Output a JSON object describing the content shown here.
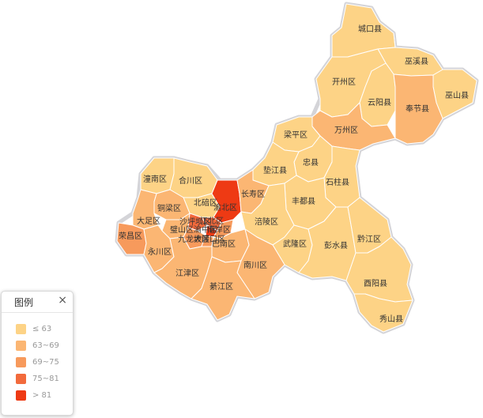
{
  "legend": {
    "title": "图例",
    "close": "×",
    "items": [
      {
        "label": "≤ 63",
        "color": "#fdd386"
      },
      {
        "label": "63~69",
        "color": "#fbb673"
      },
      {
        "label": "69~75",
        "color": "#f79a5c"
      },
      {
        "label": "75~81",
        "color": "#f26a3c"
      },
      {
        "label": "> 81",
        "color": "#ee3a14"
      }
    ]
  },
  "regions": [
    {
      "name": "城口县",
      "class": 0
    },
    {
      "name": "巫溪县",
      "class": 0
    },
    {
      "name": "开州区",
      "class": 0
    },
    {
      "name": "巫山县",
      "class": 0
    },
    {
      "name": "云阳县",
      "class": 0
    },
    {
      "name": "奉节县",
      "class": 1
    },
    {
      "name": "万州区",
      "class": 1
    },
    {
      "name": "梁平区",
      "class": 0
    },
    {
      "name": "忠县",
      "class": 0
    },
    {
      "name": "垫江县",
      "class": 0
    },
    {
      "name": "石柱县",
      "class": 0
    },
    {
      "name": "潼南区",
      "class": 0
    },
    {
      "name": "合川区",
      "class": 0
    },
    {
      "name": "北碚区",
      "class": 0
    },
    {
      "name": "渝北区",
      "class": 4
    },
    {
      "name": "长寿区",
      "class": 1
    },
    {
      "name": "丰都县",
      "class": 0
    },
    {
      "name": "铜梁区",
      "class": 1
    },
    {
      "name": "大足区",
      "class": 1
    },
    {
      "name": "沙坪坝区",
      "class": 3
    },
    {
      "name": "江北区",
      "class": 3
    },
    {
      "name": "荣昌区",
      "class": 2
    },
    {
      "name": "璧山区",
      "class": 1
    },
    {
      "name": "渝中区",
      "class": 4
    },
    {
      "name": "南岸区",
      "class": 2
    },
    {
      "name": "涪陵区",
      "class": 0
    },
    {
      "name": "九龙坡区",
      "class": 2
    },
    {
      "name": "大渡口区",
      "class": 2
    },
    {
      "name": "巴南区",
      "class": 1
    },
    {
      "name": "永川区",
      "class": 1
    },
    {
      "name": "武隆区",
      "class": 0
    },
    {
      "name": "彭水县",
      "class": 0
    },
    {
      "name": "黔江区",
      "class": 0
    },
    {
      "name": "江津区",
      "class": 1
    },
    {
      "name": "南川区",
      "class": 1
    },
    {
      "name": "綦江区",
      "class": 1
    },
    {
      "name": "酉阳县",
      "class": 0
    },
    {
      "name": "秀山县",
      "class": 0
    }
  ]
}
